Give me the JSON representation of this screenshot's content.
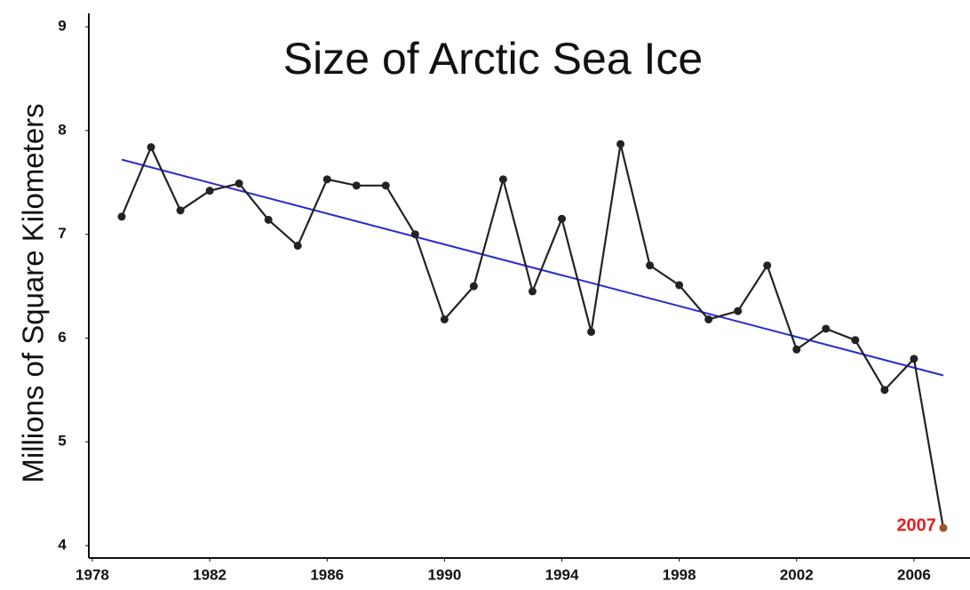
{
  "chart_data": {
    "type": "line",
    "title": "Size of Arctic Sea Ice",
    "y_label": "Millions of Square Kilometers",
    "x": [
      1979,
      1980,
      1981,
      1982,
      1983,
      1984,
      1985,
      1986,
      1987,
      1988,
      1989,
      1990,
      1991,
      1992,
      1993,
      1994,
      1995,
      1996,
      1997,
      1998,
      1999,
      2000,
      2001,
      2002,
      2003,
      2004,
      2005,
      2006,
      2007
    ],
    "series": [
      {
        "color": "#222222",
        "values": [
          7.17,
          7.84,
          7.23,
          7.42,
          7.49,
          7.14,
          6.89,
          7.53,
          7.47,
          7.47,
          7.0,
          6.18,
          6.5,
          7.53,
          6.45,
          7.15,
          6.06,
          7.87,
          6.7,
          6.51,
          6.18,
          6.26,
          6.7,
          5.89,
          6.09,
          5.98,
          5.5,
          5.8,
          4.17
        ]
      }
    ],
    "trend": {
      "color": "#2a2ad0",
      "x": [
        1979,
        2007
      ],
      "values": [
        7.72,
        5.64
      ]
    },
    "highlight_color": "#e02020",
    "xlim": [
      1977.88,
      2007.91
    ],
    "ylim": [
      3.88,
      9.13
    ],
    "xticks": [
      1978,
      1982,
      1986,
      1990,
      1994,
      1998,
      2002,
      2006
    ],
    "yticks": [
      4,
      5,
      6,
      7,
      8,
      9
    ]
  }
}
